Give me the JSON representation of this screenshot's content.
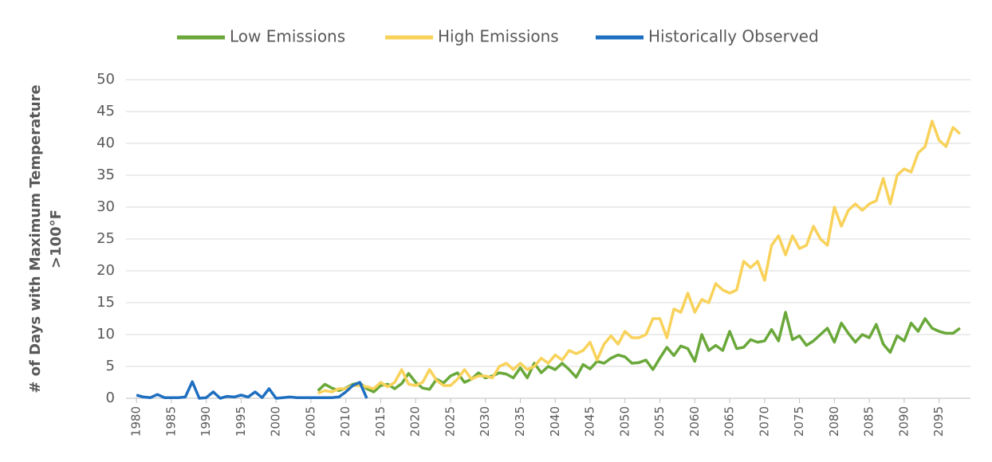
{
  "chart_data": {
    "type": "line",
    "ylabel": [
      "# of Days with Maximum Temperature",
      ">100°F"
    ],
    "xlim": [
      1978.5,
      2099.5
    ],
    "xticks": [
      1980,
      1985,
      1990,
      1995,
      2000,
      2005,
      2010,
      2015,
      2020,
      2025,
      2030,
      2035,
      2040,
      2045,
      2050,
      2055,
      2060,
      2065,
      2070,
      2075,
      2080,
      2085,
      2090,
      2095
    ],
    "ylim": [
      0,
      50
    ],
    "yticks": [
      0,
      5,
      10,
      15,
      20,
      25,
      30,
      35,
      40,
      45,
      50
    ],
    "grid": true,
    "legend": "top",
    "series": [
      {
        "name": "Low Emissions",
        "color": "#6aa83a",
        "x": [
          2006,
          2007,
          2008,
          2009,
          2010,
          2011,
          2012,
          2013,
          2014,
          2015,
          2016,
          2017,
          2018,
          2019,
          2020,
          2021,
          2022,
          2023,
          2024,
          2025,
          2026,
          2027,
          2028,
          2029,
          2030,
          2031,
          2032,
          2033,
          2034,
          2035,
          2036,
          2037,
          2038,
          2039,
          2040,
          2041,
          2042,
          2043,
          2044,
          2045,
          2046,
          2047,
          2048,
          2049,
          2050,
          2051,
          2052,
          2053,
          2054,
          2055,
          2056,
          2057,
          2058,
          2059,
          2060,
          2061,
          2062,
          2063,
          2064,
          2065,
          2066,
          2067,
          2068,
          2069,
          2070,
          2071,
          2072,
          2073,
          2074,
          2075,
          2076,
          2077,
          2078,
          2079,
          2080,
          2081,
          2082,
          2083,
          2084,
          2085,
          2086,
          2087,
          2088,
          2089,
          2090,
          2091,
          2092,
          2093,
          2094,
          2095,
          2096,
          2097,
          2098
        ],
        "values": [
          1.2,
          2.2,
          1.6,
          1.2,
          1.6,
          2.2,
          2.4,
          1.5,
          1.0,
          2.0,
          2.2,
          1.5,
          2.3,
          3.9,
          2.5,
          1.6,
          1.4,
          3.0,
          2.4,
          3.5,
          4.0,
          2.5,
          3.0,
          4.0,
          3.2,
          3.5,
          4.0,
          3.8,
          3.2,
          4.8,
          3.2,
          5.5,
          4.0,
          5.0,
          4.5,
          5.5,
          4.5,
          3.3,
          5.3,
          4.6,
          5.8,
          5.5,
          6.3,
          6.8,
          6.5,
          5.5,
          5.6,
          6.0,
          4.5,
          6.3,
          8.0,
          6.7,
          8.2,
          7.8,
          5.8,
          10.0,
          7.5,
          8.3,
          7.5,
          10.5,
          7.8,
          8.0,
          9.2,
          8.8,
          9.0,
          10.8,
          9.0,
          13.5,
          9.2,
          9.8,
          8.3,
          9.0,
          10.0,
          11.0,
          8.8,
          11.8,
          10.2,
          8.8,
          10.0,
          9.5,
          11.6,
          8.5,
          7.2,
          9.8,
          9.0,
          11.8,
          10.5,
          12.5,
          11.0,
          10.5,
          10.2,
          10.2,
          11.0
        ]
      },
      {
        "name": "High Emissions",
        "color": "#f8d25a",
        "x": [
          2006,
          2007,
          2008,
          2009,
          2010,
          2011,
          2012,
          2013,
          2014,
          2015,
          2016,
          2017,
          2018,
          2019,
          2020,
          2021,
          2022,
          2023,
          2024,
          2025,
          2026,
          2027,
          2028,
          2029,
          2030,
          2031,
          2032,
          2033,
          2034,
          2035,
          2036,
          2037,
          2038,
          2039,
          2040,
          2041,
          2042,
          2043,
          2044,
          2045,
          2046,
          2047,
          2048,
          2049,
          2050,
          2051,
          2052,
          2053,
          2054,
          2055,
          2056,
          2057,
          2058,
          2059,
          2060,
          2061,
          2062,
          2063,
          2064,
          2065,
          2066,
          2067,
          2068,
          2069,
          2070,
          2071,
          2072,
          2073,
          2074,
          2075,
          2076,
          2077,
          2078,
          2079,
          2080,
          2081,
          2082,
          2083,
          2084,
          2085,
          2086,
          2087,
          2088,
          2089,
          2090,
          2091,
          2092,
          2093,
          2094,
          2095,
          2096,
          2097,
          2098
        ],
        "values": [
          0.8,
          1.2,
          1.0,
          1.5,
          1.5,
          2.0,
          2.0,
          1.8,
          1.5,
          2.5,
          1.8,
          2.5,
          4.5,
          2.2,
          2.0,
          2.5,
          4.5,
          2.8,
          2.0,
          2.0,
          3.0,
          4.5,
          3.0,
          3.5,
          3.5,
          3.2,
          5.0,
          5.5,
          4.5,
          5.5,
          4.5,
          5.0,
          6.3,
          5.5,
          6.8,
          6.0,
          7.5,
          7.0,
          7.5,
          8.8,
          6.0,
          8.5,
          9.8,
          8.5,
          10.5,
          9.5,
          9.5,
          10.0,
          12.5,
          12.5,
          9.5,
          14.0,
          13.5,
          16.5,
          13.5,
          15.5,
          15.0,
          18.0,
          17.0,
          16.5,
          17.0,
          21.5,
          20.5,
          21.5,
          18.5,
          24.0,
          25.5,
          22.5,
          25.5,
          23.5,
          24.0,
          27.0,
          25.0,
          24.0,
          30.0,
          27.0,
          29.5,
          30.5,
          29.5,
          30.5,
          31.0,
          34.5,
          30.5,
          35.0,
          36.0,
          35.5,
          38.5,
          39.5,
          43.5,
          40.5,
          39.5,
          42.5,
          41.5
        ]
      },
      {
        "name": "Historically Observed",
        "color": "#1f6fc1",
        "x": [
          1980,
          1981,
          1982,
          1983,
          1984,
          1985,
          1986,
          1987,
          1988,
          1989,
          1990,
          1991,
          1992,
          1993,
          1994,
          1995,
          1996,
          1997,
          1998,
          1999,
          2000,
          2001,
          2002,
          2003,
          2004,
          2005,
          2006,
          2007,
          2008,
          2009,
          2010,
          2011,
          2012,
          2013
        ],
        "values": [
          0.5,
          0.2,
          0.1,
          0.6,
          0.1,
          0.1,
          0.1,
          0.2,
          2.6,
          0,
          0.1,
          1.0,
          0,
          0.3,
          0.2,
          0.5,
          0.2,
          1.0,
          0.1,
          1.5,
          0,
          0.1,
          0.2,
          0.1,
          0.1,
          0.1,
          0.1,
          0.1,
          0.1,
          0.2,
          1.0,
          2.0,
          2.5,
          0
        ]
      }
    ]
  }
}
